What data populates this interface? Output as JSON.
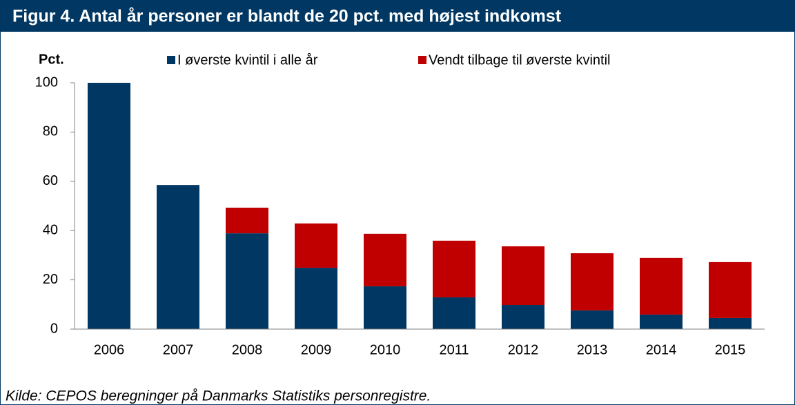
{
  "chart_data": {
    "type": "stacked_bar",
    "title": "Figur 4. Antal år personer er blandt de 20 pct. med højest indkomst",
    "y_label": "Pct.",
    "source": "Kilde: CEPOS beregninger på Danmarks Statistiks personregistre.",
    "categories": [
      "2006",
      "2007",
      "2008",
      "2009",
      "2010",
      "2011",
      "2012",
      "2013",
      "2014",
      "2015"
    ],
    "series": [
      {
        "name": "I øverste kvintil i alle år",
        "color": "#003863",
        "values": [
          100,
          58.5,
          38.9,
          24.9,
          17.4,
          12.9,
          9.8,
          7.6,
          5.9,
          4.5
        ]
      },
      {
        "name": "Vendt tilbage til  øverste kvintil",
        "color": "#c00000",
        "values": [
          0,
          0,
          10.4,
          18.0,
          21.3,
          23.0,
          23.8,
          23.2,
          23.0,
          22.7
        ]
      }
    ],
    "ylim": [
      0,
      100
    ],
    "yticks": [
      0,
      20,
      40,
      60,
      80,
      100
    ]
  }
}
